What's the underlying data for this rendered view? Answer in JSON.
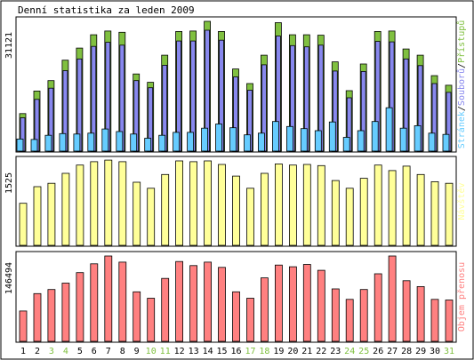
{
  "chart_data": [
    {
      "type": "bar",
      "title": "Denní statistika za leden 2009",
      "ylabel": "31121",
      "legend": [
        "Stránek",
        "Souborů",
        "Přístupů"
      ],
      "legend_placement": "right",
      "categories": [
        "1",
        "2",
        "3",
        "4",
        "5",
        "6",
        "7",
        "8",
        "9",
        "10",
        "11",
        "12",
        "13",
        "14",
        "15",
        "16",
        "17",
        "18",
        "19",
        "20",
        "21",
        "22",
        "23",
        "24",
        "25",
        "26",
        "27",
        "28",
        "29",
        "30",
        "31"
      ],
      "ylim": [
        0,
        31121
      ],
      "series": [
        {
          "name": "Přístupů",
          "color": "#80c040",
          "values": [
            9000,
            14400,
            16900,
            21800,
            24700,
            27900,
            28800,
            28500,
            18500,
            16500,
            23000,
            28700,
            28800,
            31121,
            28700,
            19700,
            16200,
            23000,
            30800,
            27900,
            27900,
            27800,
            21400,
            14500,
            20900,
            28700,
            28800,
            24500,
            23000,
            18100,
            15800
          ]
        },
        {
          "name": "Souborů",
          "color": "#8888ee",
          "values": [
            8000,
            12400,
            15100,
            19300,
            22100,
            25100,
            26100,
            25400,
            16900,
            15200,
            20600,
            26400,
            26400,
            29000,
            26600,
            17800,
            14600,
            20700,
            27600,
            25300,
            25000,
            25400,
            19200,
            12800,
            19100,
            26300,
            26200,
            22100,
            20500,
            16200,
            14100
          ]
        },
        {
          "name": "Stránek",
          "color": "#66ccff",
          "values": [
            2900,
            2800,
            3800,
            4200,
            4100,
            4300,
            5300,
            4700,
            4100,
            3100,
            3800,
            4500,
            4500,
            5500,
            6500,
            5600,
            3900,
            4300,
            7100,
            5900,
            5400,
            4900,
            7000,
            3300,
            4900,
            7100,
            10400,
            5500,
            6100,
            4300,
            4000
          ]
        }
      ]
    },
    {
      "type": "bar",
      "ylabel": "1525",
      "legend": [
        "Návštěv"
      ],
      "legend_placement": "right",
      "categories": [
        "1",
        "2",
        "3",
        "4",
        "5",
        "6",
        "7",
        "8",
        "9",
        "10",
        "11",
        "12",
        "13",
        "14",
        "15",
        "16",
        "17",
        "18",
        "19",
        "20",
        "21",
        "22",
        "23",
        "24",
        "25",
        "26",
        "27",
        "28",
        "29",
        "30",
        "31"
      ],
      "ylim": [
        0,
        1525
      ],
      "series": [
        {
          "name": "Návštěv",
          "color": "#ffff99",
          "values": [
            760,
            1060,
            1120,
            1300,
            1450,
            1510,
            1540,
            1510,
            1140,
            1030,
            1280,
            1525,
            1510,
            1525,
            1460,
            1250,
            1030,
            1300,
            1470,
            1450,
            1460,
            1440,
            1170,
            1030,
            1210,
            1450,
            1350,
            1430,
            1280,
            1150,
            1120
          ]
        }
      ]
    },
    {
      "type": "bar",
      "ylabel": "146494",
      "legend": [
        "Objem přenosu"
      ],
      "legend_placement": "right",
      "categories": [
        "1",
        "2",
        "3",
        "4",
        "5",
        "6",
        "7",
        "8",
        "9",
        "10",
        "11",
        "12",
        "13",
        "14",
        "15",
        "16",
        "17",
        "18",
        "19",
        "20",
        "21",
        "22",
        "23",
        "24",
        "25",
        "26",
        "27",
        "28",
        "29",
        "30",
        "31"
      ],
      "ylim": [
        0,
        146494
      ],
      "series": [
        {
          "name": "Objem přenosu",
          "color": "#ff8080",
          "values": [
            52000,
            82000,
            89000,
            100000,
            118000,
            133000,
            146494,
            136000,
            85000,
            74000,
            108000,
            137000,
            130000,
            136000,
            127000,
            85000,
            74000,
            109000,
            131000,
            128000,
            132000,
            122000,
            90000,
            72000,
            89000,
            116000,
            146494,
            104000,
            94000,
            72000,
            71000
          ]
        }
      ]
    }
  ],
  "x_tick_colors": {
    "weekday": "#000000",
    "weekend": "#80c040",
    "weekend_days": [
      "3",
      "4",
      "10",
      "11",
      "17",
      "18",
      "24",
      "25",
      "31"
    ]
  }
}
